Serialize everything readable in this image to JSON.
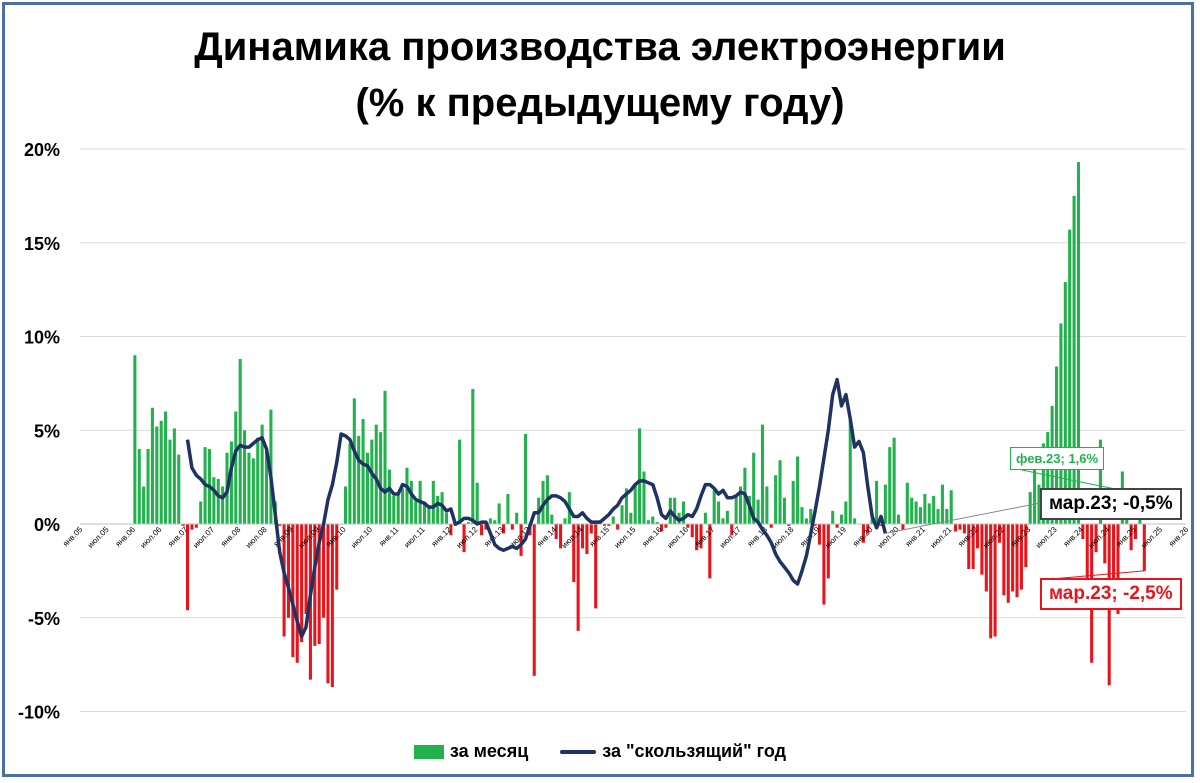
{
  "title_line1": "Динамика производства электроэнергии",
  "title_line2": "(% к предыдущему году)",
  "colors": {
    "positive": "#22b14c",
    "negative": "#e8141b",
    "line": "#1f3264",
    "grid": "#d9d9d9",
    "frame": "#4a6fa5"
  },
  "legend": {
    "bars": "за месяц",
    "line": "за \"скользящий\" год"
  },
  "callouts": {
    "feb": "фев.23; 1,6%",
    "mar_line": "мар.23; -0,5%",
    "mar_bar": "мар.23; -2,5%"
  },
  "chart_data": {
    "type": "bar",
    "y_ticks": [
      "20%",
      "15%",
      "10%",
      "5%",
      "0%",
      "-5%",
      "-10%"
    ],
    "x_ticks": [
      "янв.05",
      "июл.05",
      "янв.06",
      "июл.06",
      "янв.07",
      "июл.07",
      "янв.08",
      "июл.08",
      "янв.09",
      "июл.09",
      "янв.10",
      "июл.10",
      "янв.11",
      "июл.11",
      "янв.12",
      "июл.12",
      "янв.13",
      "июл.13",
      "янв.14",
      "июл.14",
      "янв.15",
      "июл.15",
      "янв.16",
      "июл.16",
      "янв.17",
      "июл.17",
      "янв.18",
      "июл.18",
      "янв.19",
      "июл.19",
      "янв.20",
      "июл.20",
      "янв.21",
      "июл.21",
      "янв.22",
      "июл.22",
      "янв.23",
      "июл.23",
      "янв.24",
      "июл.24",
      "янв.25",
      "июл.25",
      "янв.26"
    ],
    "ylim": [
      -10,
      20
    ],
    "x_start": "янв.05",
    "series": [
      {
        "name": "за месяц",
        "type": "bar",
        "start": "янв.06",
        "values": [
          9.0,
          4.0,
          2.0,
          4.0,
          6.2,
          5.2,
          5.5,
          6.0,
          4.5,
          5.1,
          3.7,
          -0.1,
          -4.6,
          -0.3,
          -0.2,
          1.2,
          4.1,
          4.0,
          2.5,
          2.4,
          2.0,
          3.8,
          4.4,
          6.0,
          8.8,
          5.0,
          3.8,
          3.5,
          4.6,
          5.3,
          4.0,
          6.1,
          1.2,
          -0.1,
          -6.0,
          -5.0,
          -7.1,
          -7.4,
          -6.3,
          -4.8,
          -8.3,
          -6.5,
          -6.4,
          -5.0,
          -8.5,
          -8.7,
          -3.5,
          0.0,
          2.0,
          4.3,
          6.7,
          4.7,
          5.6,
          3.8,
          4.5,
          5.3,
          4.9,
          7.1,
          2.9,
          1.5,
          1.6,
          1.9,
          3.0,
          2.3,
          1.2,
          2.3,
          1.2,
          1.0,
          2.3,
          1.5,
          1.7,
          0.6,
          -0.6,
          -0.1,
          4.5,
          -1.5,
          0.1,
          7.2,
          2.2,
          -0.6,
          -0.3,
          0.3,
          0.2,
          1.1,
          -0.5,
          1.6,
          -0.3,
          0.6,
          -1.7,
          4.8,
          -0.6,
          -8.1,
          1.4,
          2.3,
          2.6,
          0.5,
          -0.8,
          -1.3,
          0.3,
          1.7,
          -3.1,
          -5.7,
          -1.3,
          -1.6,
          -0.5,
          -4.5,
          0.2,
          -0.1,
          -0.1,
          0.4,
          -0.3,
          1.0,
          1.9,
          0.6,
          2.1,
          5.1,
          2.8,
          0.2,
          0.4,
          0.1,
          -0.4,
          -0.2,
          1.4,
          1.4,
          0.6,
          1.2,
          -0.2,
          -0.7,
          -1.4,
          -1.3,
          0.6,
          -2.9,
          1.8,
          1.2,
          0.3,
          0.7,
          -0.6,
          1.5,
          2.0,
          3.0,
          1.5,
          3.8,
          1.3,
          5.3,
          2.0,
          -0.2,
          2.6,
          3.4,
          1.4,
          -0.1,
          2.3,
          3.6,
          0.9,
          0.3,
          0.8,
          -0.1,
          -1.1,
          -4.3,
          -2.9,
          0.7,
          -0.2,
          0.5,
          1.2,
          5.6,
          0.3,
          0.0,
          -1.0,
          -0.5,
          0.5,
          2.3,
          -0.1,
          2.1,
          4.1,
          4.6,
          0.5,
          -0.3,
          2.2,
          1.4,
          1.2,
          0.9,
          1.6,
          1.1,
          1.5,
          0.8,
          2.1,
          0.8,
          1.8,
          -0.4,
          -0.3,
          -0.5,
          -2.4,
          -2.4,
          -1.3,
          -2.7,
          -3.6,
          -6.1,
          -6.0,
          -1.0,
          -3.8,
          -4.2,
          -3.6,
          -3.9,
          -3.5,
          -2.3,
          1.7,
          4.0,
          2.1,
          4.3,
          4.9,
          6.3,
          8.4,
          10.7,
          12.9,
          15.7,
          17.5,
          19.3,
          -0.8,
          -3.2,
          -7.4,
          -1.5,
          4.5,
          -2.1,
          -8.6,
          -3.2,
          -4.8,
          2.8,
          0.7,
          -1.4,
          -0.8,
          1.6,
          -2.5
        ]
      },
      {
        "name": "за \"скользящий\" год",
        "type": "line",
        "start": "янв.07",
        "values": [
          4.5,
          3.0,
          2.6,
          2.4,
          2.1,
          2.0,
          1.8,
          1.5,
          1.4,
          1.7,
          3.0,
          3.9,
          4.2,
          4.1,
          4.1,
          4.3,
          4.5,
          4.6,
          4.0,
          2.5,
          0.5,
          -1.5,
          -2.6,
          -3.4,
          -4.3,
          -5.2,
          -6.0,
          -5.5,
          -3.8,
          -2.3,
          -1.0,
          0.0,
          1.3,
          2.1,
          3.3,
          4.8,
          4.7,
          4.5,
          3.9,
          3.4,
          3.2,
          3.1,
          2.7,
          2.4,
          1.9,
          1.7,
          1.9,
          1.6,
          1.6,
          2.1,
          2.0,
          1.6,
          1.3,
          1.2,
          1.1,
          0.9,
          0.9,
          1.1,
          1.0,
          0.7,
          0.8,
          0.0,
          0.1,
          0.3,
          0.3,
          0.2,
          0.0,
          0.1,
          0.1,
          -0.5,
          -1.1,
          -1.3,
          -1.4,
          -1.3,
          -1.2,
          -1.3,
          -1.1,
          -0.8,
          -0.1,
          0.6,
          0.6,
          1.0,
          1.3,
          1.5,
          1.5,
          1.4,
          1.2,
          0.8,
          0.4,
          0.4,
          0.6,
          0.3,
          0.1,
          0.1,
          0.1,
          0.3,
          0.5,
          0.8,
          1.0,
          1.4,
          1.6,
          1.8,
          2.1,
          2.3,
          2.3,
          2.2,
          2.1,
          1.4,
          0.5,
          0.3,
          0.7,
          0.4,
          0.2,
          0.3,
          0.5,
          0.4,
          0.8,
          1.5,
          2.1,
          2.1,
          1.9,
          1.6,
          1.8,
          1.4,
          1.4,
          1.5,
          1.7,
          1.6,
          1.0,
          0.3,
          0.1,
          -0.3,
          -0.6,
          -1.0,
          -1.6,
          -2.0,
          -2.3,
          -2.6,
          -3.0,
          -3.2,
          -2.5,
          -1.7,
          -0.5,
          0.7,
          2.0,
          3.5,
          5.0,
          6.9,
          7.7,
          6.3,
          6.9,
          5.6,
          4.1,
          4.4,
          3.8,
          2.0,
          0.4,
          -0.2,
          0.4,
          -0.5
        ]
      }
    ]
  }
}
